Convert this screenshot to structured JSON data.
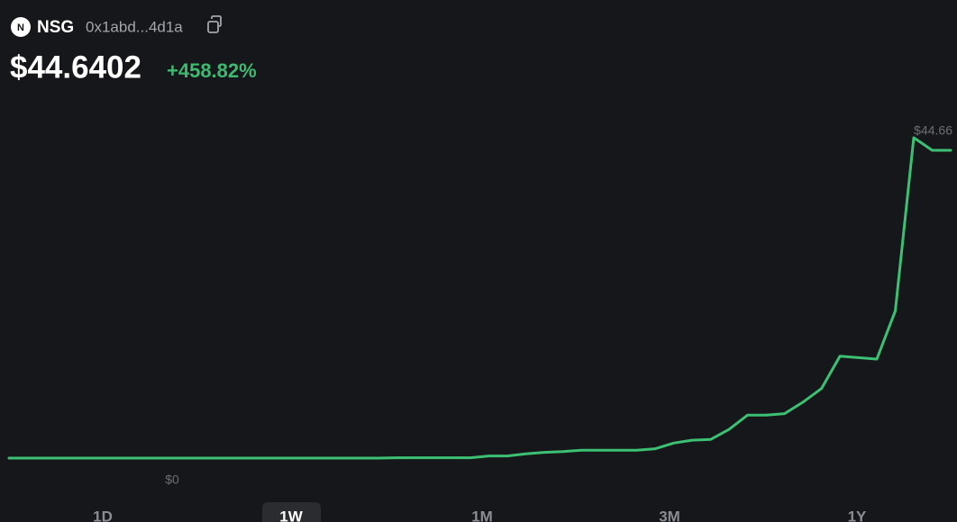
{
  "header": {
    "icon_letter": "N",
    "symbol": "NSG",
    "address": "0x1abd...4d1a",
    "price": "$44.6402",
    "change": "+458.82%"
  },
  "chart_data": {
    "type": "line",
    "color": "#3cc073",
    "values": [
      0,
      0,
      0,
      0,
      0,
      0,
      0,
      0,
      0,
      0,
      0,
      0,
      0,
      0,
      0,
      0,
      0,
      0,
      0,
      0,
      0,
      0.05,
      0.05,
      0.05,
      0.05,
      0.05,
      0.3,
      0.3,
      0.6,
      0.8,
      0.9,
      1.1,
      1.1,
      1.1,
      1.1,
      1.3,
      2.1,
      2.5,
      2.6,
      4.0,
      6.0,
      6.0,
      6.2,
      7.8,
      9.7,
      14.2,
      14.0,
      13.8,
      20.5,
      44.66,
      42.9,
      42.9
    ],
    "max_label": {
      "value": 44.66,
      "label": "$44.66"
    },
    "min_label": {
      "value": 0,
      "label": "$0"
    }
  },
  "ranges": {
    "options": [
      "1D",
      "1W",
      "1M",
      "3M",
      "1Y"
    ],
    "selected": "1W"
  }
}
